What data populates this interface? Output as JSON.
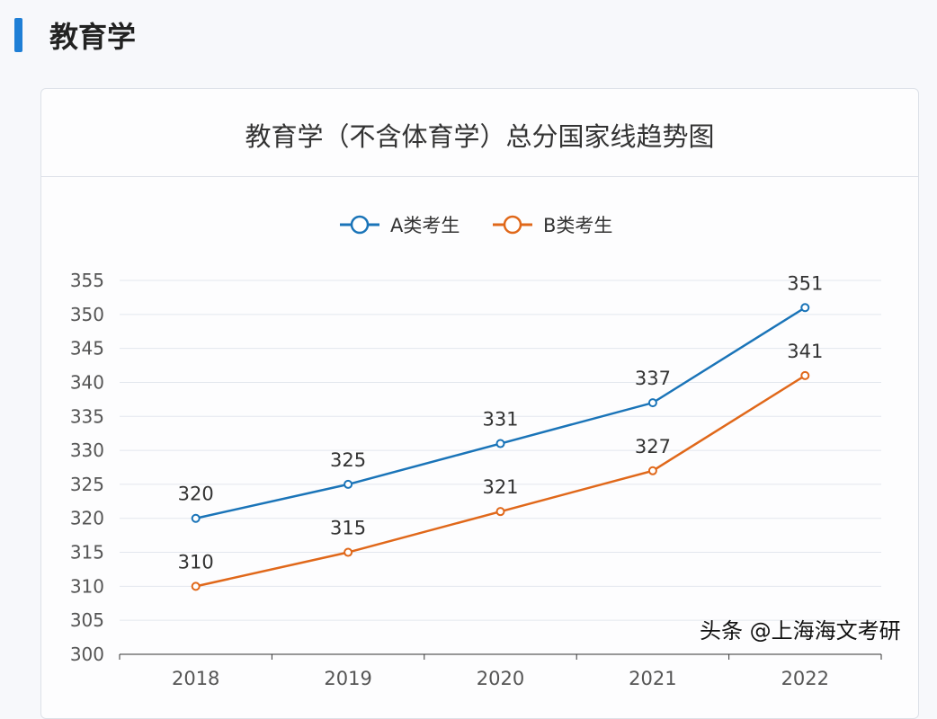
{
  "header": {
    "title": "教育学",
    "accent": "#1f7fd6"
  },
  "watermark": "头条 @上海海文考研",
  "chart_data": {
    "type": "line",
    "title": "教育学（不含体育学）总分国家线趋势图",
    "categories": [
      "2018",
      "2019",
      "2020",
      "2021",
      "2022"
    ],
    "series": [
      {
        "name": "A类考生",
        "values": [
          320,
          325,
          331,
          337,
          351
        ],
        "color": "#1a74b8"
      },
      {
        "name": "B类考生",
        "values": [
          310,
          315,
          321,
          327,
          341
        ],
        "color": "#e0681a"
      }
    ],
    "ylim": [
      300,
      355
    ],
    "yticks": [
      "300",
      "305",
      "310",
      "315",
      "320",
      "325",
      "330",
      "335",
      "340",
      "345",
      "350",
      "355"
    ],
    "grid": true,
    "legend": "top-center",
    "data_labels": true
  }
}
